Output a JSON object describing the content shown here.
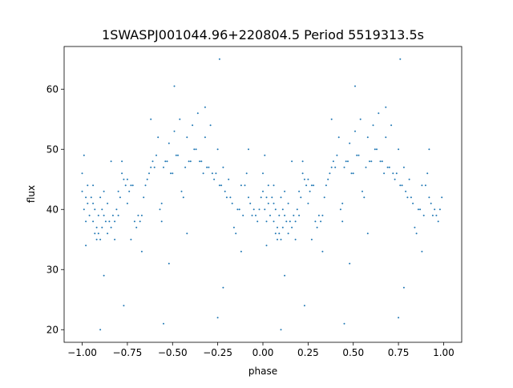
{
  "chart_data": {
    "type": "scatter",
    "title": "1SWASPJ001044.96+220804.5 Period 5519313.5s",
    "xlabel": "phase",
    "ylabel": "flux",
    "xlim": [
      -1.1,
      1.1
    ],
    "ylim": [
      17.9,
      67.1
    ],
    "xticks": [
      -1.0,
      -0.75,
      -0.5,
      -0.25,
      0.0,
      0.25,
      0.5,
      0.75,
      1.0
    ],
    "xtick_labels": [
      "−1.00",
      "−0.75",
      "−0.50",
      "−0.25",
      "0.00",
      "0.25",
      "0.50",
      "0.75",
      "1.00"
    ],
    "yticks": [
      20,
      30,
      40,
      50,
      60
    ],
    "ytick_labels": [
      "20",
      "30",
      "40",
      "50",
      "60"
    ],
    "grid": false,
    "color": "#1f77b4",
    "note_duplicated_phase": "points plotted at phase and phase-1",
    "points": [
      [
        0.0,
        43
      ],
      [
        0.0,
        46
      ],
      [
        0.01,
        40
      ],
      [
        0.01,
        49
      ],
      [
        0.02,
        42
      ],
      [
        0.02,
        38
      ],
      [
        0.03,
        41
      ],
      [
        0.03,
        44
      ],
      [
        0.04,
        39
      ],
      [
        0.05,
        42
      ],
      [
        0.06,
        41
      ],
      [
        0.06,
        44
      ],
      [
        0.06,
        38
      ],
      [
        0.07,
        40
      ],
      [
        0.07,
        36
      ],
      [
        0.08,
        37
      ],
      [
        0.08,
        35
      ],
      [
        0.09,
        36
      ],
      [
        0.09,
        39
      ],
      [
        0.1,
        35
      ],
      [
        0.1,
        42
      ],
      [
        0.11,
        40
      ],
      [
        0.11,
        37
      ],
      [
        0.12,
        39
      ],
      [
        0.12,
        43
      ],
      [
        0.13,
        38
      ],
      [
        0.14,
        36
      ],
      [
        0.14,
        41
      ],
      [
        0.15,
        38
      ],
      [
        0.16,
        37
      ],
      [
        0.17,
        39
      ],
      [
        0.18,
        38
      ],
      [
        0.18,
        35
      ],
      [
        0.19,
        40
      ],
      [
        0.2,
        39
      ],
      [
        0.2,
        43
      ],
      [
        0.21,
        42
      ],
      [
        0.22,
        46
      ],
      [
        0.22,
        48
      ],
      [
        0.23,
        45
      ],
      [
        0.24,
        44
      ],
      [
        0.25,
        45
      ],
      [
        0.25,
        41
      ],
      [
        0.26,
        43
      ],
      [
        0.27,
        44
      ],
      [
        0.28,
        44
      ],
      [
        0.29,
        38
      ],
      [
        0.3,
        37
      ],
      [
        0.31,
        39
      ],
      [
        0.32,
        38
      ],
      [
        0.33,
        39
      ],
      [
        0.34,
        42
      ],
      [
        0.35,
        44
      ],
      [
        0.36,
        45
      ],
      [
        0.37,
        46
      ],
      [
        0.38,
        47
      ],
      [
        0.39,
        48
      ],
      [
        0.4,
        47
      ],
      [
        0.41,
        49
      ],
      [
        0.42,
        52
      ],
      [
        0.43,
        40
      ],
      [
        0.44,
        41
      ],
      [
        0.44,
        38
      ],
      [
        0.45,
        47
      ],
      [
        0.46,
        48
      ],
      [
        0.47,
        48
      ],
      [
        0.48,
        51
      ],
      [
        0.49,
        46
      ],
      [
        0.5,
        46
      ],
      [
        0.51,
        53
      ],
      [
        0.52,
        49
      ],
      [
        0.53,
        49
      ],
      [
        0.54,
        55
      ],
      [
        0.55,
        43
      ],
      [
        0.56,
        42
      ],
      [
        0.57,
        47
      ],
      [
        0.58,
        52
      ],
      [
        0.59,
        48
      ],
      [
        0.6,
        48
      ],
      [
        0.61,
        54
      ],
      [
        0.62,
        50
      ],
      [
        0.63,
        50
      ],
      [
        0.64,
        56
      ],
      [
        0.65,
        48
      ],
      [
        0.66,
        48
      ],
      [
        0.67,
        46
      ],
      [
        0.68,
        52
      ],
      [
        0.69,
        47
      ],
      [
        0.7,
        47
      ],
      [
        0.71,
        54
      ],
      [
        0.72,
        46
      ],
      [
        0.73,
        45
      ],
      [
        0.74,
        46
      ],
      [
        0.75,
        50
      ],
      [
        0.76,
        44
      ],
      [
        0.77,
        44
      ],
      [
        0.78,
        47
      ],
      [
        0.79,
        43
      ],
      [
        0.8,
        42
      ],
      [
        0.81,
        45
      ],
      [
        0.82,
        42
      ],
      [
        0.83,
        41
      ],
      [
        0.84,
        37
      ],
      [
        0.85,
        36
      ],
      [
        0.86,
        40
      ],
      [
        0.87,
        40
      ],
      [
        0.88,
        44
      ],
      [
        0.89,
        39
      ],
      [
        0.9,
        44
      ],
      [
        0.91,
        46
      ],
      [
        0.92,
        42
      ],
      [
        0.93,
        41
      ],
      [
        0.94,
        39
      ],
      [
        0.95,
        40
      ],
      [
        0.96,
        39
      ],
      [
        0.97,
        38
      ],
      [
        0.98,
        40
      ],
      [
        0.99,
        42
      ],
      [
        0.1,
        20
      ],
      [
        0.45,
        21
      ],
      [
        0.75,
        22
      ],
      [
        0.23,
        24
      ],
      [
        0.51,
        60.5
      ],
      [
        0.76,
        65
      ],
      [
        0.12,
        29
      ],
      [
        0.33,
        33
      ],
      [
        0.48,
        31
      ],
      [
        0.78,
        27
      ],
      [
        0.02,
        34
      ],
      [
        0.27,
        35
      ],
      [
        0.58,
        36
      ],
      [
        0.88,
        33
      ],
      [
        0.38,
        55
      ],
      [
        0.68,
        57
      ],
      [
        0.16,
        48
      ],
      [
        0.92,
        50
      ]
    ]
  }
}
